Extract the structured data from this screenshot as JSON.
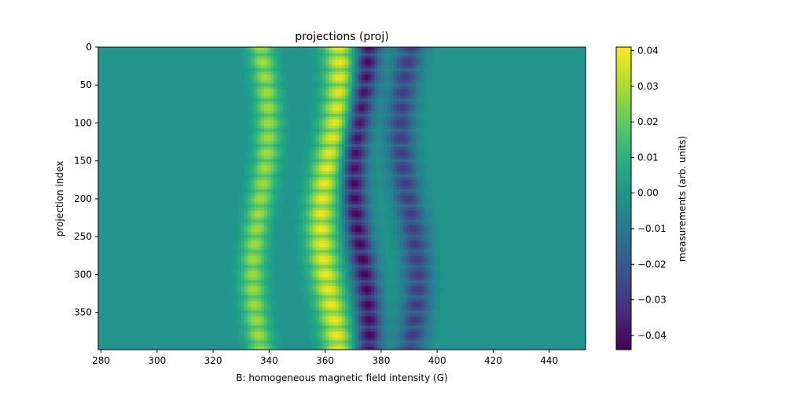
{
  "chart_data": {
    "type": "heatmap",
    "title": "projections (proj)",
    "xlabel": "B: homogeneous magnetic field intensity (G)",
    "ylabel": "projection index",
    "xlim": [
      279,
      453
    ],
    "ylim": [
      0,
      399
    ],
    "y_axis_inverted": true,
    "x_ticks": [
      280,
      300,
      320,
      340,
      360,
      380,
      400,
      420,
      440
    ],
    "y_ticks": [
      0,
      50,
      100,
      150,
      200,
      250,
      300,
      350
    ],
    "colormap": "viridis",
    "colorbar": {
      "label": "measurements (arb. units)",
      "range": [
        -0.044,
        0.041
      ],
      "ticks": [
        0.04,
        0.03,
        0.02,
        0.01,
        0.0,
        -0.01,
        -0.02,
        -0.03,
        -0.04
      ],
      "tick_labels": [
        "0.04",
        "0.03",
        "0.02",
        "0.01",
        "0.00",
        "−0.01",
        "−0.02",
        "−0.03",
        "−0.04"
      ]
    },
    "background_value": 0.0,
    "features": [
      {
        "name": "positive band",
        "b_center": 337,
        "range": [
          333,
          342
        ],
        "peak_value": 0.03
      },
      {
        "name": "positive band",
        "b_center": 362,
        "range": [
          357,
          368
        ],
        "peak_value": 0.04
      },
      {
        "name": "negative band",
        "b_center": 373,
        "range": [
          369,
          378
        ],
        "peak_value": -0.044
      },
      {
        "name": "negative band",
        "b_center": 390,
        "range": [
          386,
          396
        ],
        "peak_value": -0.03
      }
    ],
    "periodic_streaks_every_projection_index": 20
  }
}
